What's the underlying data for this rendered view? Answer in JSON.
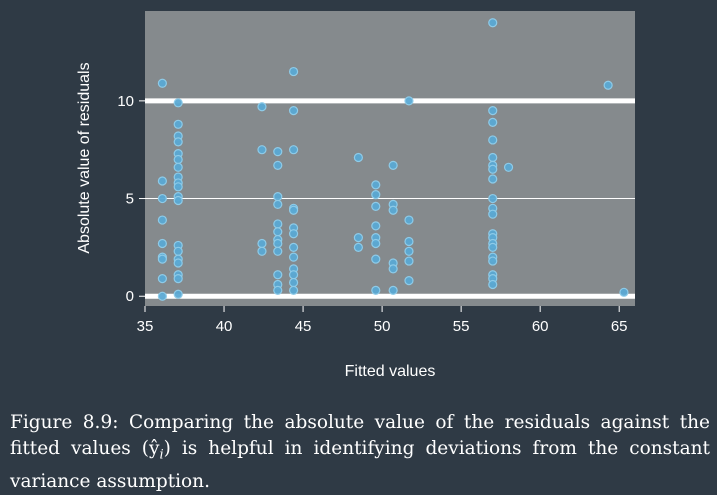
{
  "caption": {
    "label": "Figure 8.9:",
    "text": "Comparing the absolute value of the residuals against the fitted values (ŷ",
    "subscript": "i",
    "text_end": ") is helpful in identifying deviations from the constant variance assumption."
  },
  "chart_data": {
    "type": "scatter",
    "xlabel": "Fitted values",
    "ylabel": "Absolute value of residuals",
    "xlim": [
      35,
      66
    ],
    "ylim": [
      -0.5,
      14.6
    ],
    "x_ticks": [
      35,
      40,
      45,
      50,
      55,
      60,
      65
    ],
    "y_ticks": [
      0,
      5,
      10
    ],
    "grid": true,
    "reference_lines_y": [
      0,
      10
    ],
    "colors": {
      "panel": "#858a8d",
      "point_fill": "#5aa9d4",
      "point_edge": "#8ecbe8",
      "reference_line": "#ffffff"
    },
    "points": [
      [
        36.1,
        10.9
      ],
      [
        36.1,
        5.9
      ],
      [
        36.1,
        5.0
      ],
      [
        36.1,
        3.9
      ],
      [
        36.1,
        2.7
      ],
      [
        36.1,
        2.0
      ],
      [
        36.1,
        1.9
      ],
      [
        36.1,
        0.9
      ],
      [
        36.1,
        0.0
      ],
      [
        37.1,
        9.9
      ],
      [
        37.1,
        8.8
      ],
      [
        37.1,
        8.2
      ],
      [
        37.1,
        7.9
      ],
      [
        37.1,
        7.3
      ],
      [
        37.1,
        7.0
      ],
      [
        37.1,
        6.6
      ],
      [
        37.1,
        6.1
      ],
      [
        37.1,
        5.8
      ],
      [
        37.1,
        5.6
      ],
      [
        37.1,
        5.1
      ],
      [
        37.1,
        4.9
      ],
      [
        37.1,
        2.6
      ],
      [
        37.1,
        2.3
      ],
      [
        37.1,
        1.9
      ],
      [
        37.1,
        1.7
      ],
      [
        37.1,
        1.1
      ],
      [
        37.1,
        0.9
      ],
      [
        37.1,
        0.1
      ],
      [
        42.4,
        9.7
      ],
      [
        42.4,
        7.5
      ],
      [
        42.4,
        2.7
      ],
      [
        42.4,
        2.3
      ],
      [
        43.4,
        7.4
      ],
      [
        43.4,
        6.7
      ],
      [
        43.4,
        5.1
      ],
      [
        43.4,
        4.7
      ],
      [
        43.4,
        3.7
      ],
      [
        43.4,
        3.3
      ],
      [
        43.4,
        2.9
      ],
      [
        43.4,
        2.7
      ],
      [
        43.4,
        2.3
      ],
      [
        43.4,
        1.1
      ],
      [
        43.4,
        0.6
      ],
      [
        43.4,
        0.3
      ],
      [
        44.4,
        11.5
      ],
      [
        44.4,
        9.5
      ],
      [
        44.4,
        7.5
      ],
      [
        44.4,
        4.5
      ],
      [
        44.4,
        4.4
      ],
      [
        44.4,
        3.5
      ],
      [
        44.4,
        3.2
      ],
      [
        44.4,
        2.5
      ],
      [
        44.4,
        2.0
      ],
      [
        44.4,
        1.4
      ],
      [
        44.4,
        1.1
      ],
      [
        44.4,
        0.7
      ],
      [
        44.4,
        0.3
      ],
      [
        48.5,
        7.1
      ],
      [
        48.5,
        3.0
      ],
      [
        48.5,
        2.5
      ],
      [
        49.6,
        5.7
      ],
      [
        49.6,
        5.2
      ],
      [
        49.6,
        4.6
      ],
      [
        49.6,
        3.6
      ],
      [
        49.6,
        3.0
      ],
      [
        49.6,
        2.7
      ],
      [
        49.6,
        1.9
      ],
      [
        49.6,
        0.3
      ],
      [
        50.7,
        6.7
      ],
      [
        50.7,
        4.7
      ],
      [
        50.7,
        4.4
      ],
      [
        50.7,
        1.7
      ],
      [
        50.7,
        1.4
      ],
      [
        50.7,
        0.3
      ],
      [
        51.7,
        10.0
      ],
      [
        51.7,
        3.9
      ],
      [
        51.7,
        2.8
      ],
      [
        51.7,
        2.3
      ],
      [
        51.7,
        1.8
      ],
      [
        51.7,
        0.8
      ],
      [
        57.0,
        14.0
      ],
      [
        57.0,
        9.5
      ],
      [
        57.0,
        8.9
      ],
      [
        57.0,
        8.0
      ],
      [
        57.0,
        7.1
      ],
      [
        57.0,
        6.7
      ],
      [
        57.0,
        6.5
      ],
      [
        57.0,
        6.0
      ],
      [
        57.0,
        5.0
      ],
      [
        57.0,
        4.5
      ],
      [
        57.0,
        4.2
      ],
      [
        57.0,
        3.2
      ],
      [
        57.0,
        3.0
      ],
      [
        57.0,
        2.7
      ],
      [
        57.0,
        2.5
      ],
      [
        57.0,
        2.0
      ],
      [
        57.0,
        1.8
      ],
      [
        57.0,
        1.1
      ],
      [
        57.0,
        0.9
      ],
      [
        57.0,
        0.6
      ],
      [
        58.0,
        6.6
      ],
      [
        64.3,
        10.8
      ],
      [
        65.3,
        0.2
      ]
    ]
  }
}
